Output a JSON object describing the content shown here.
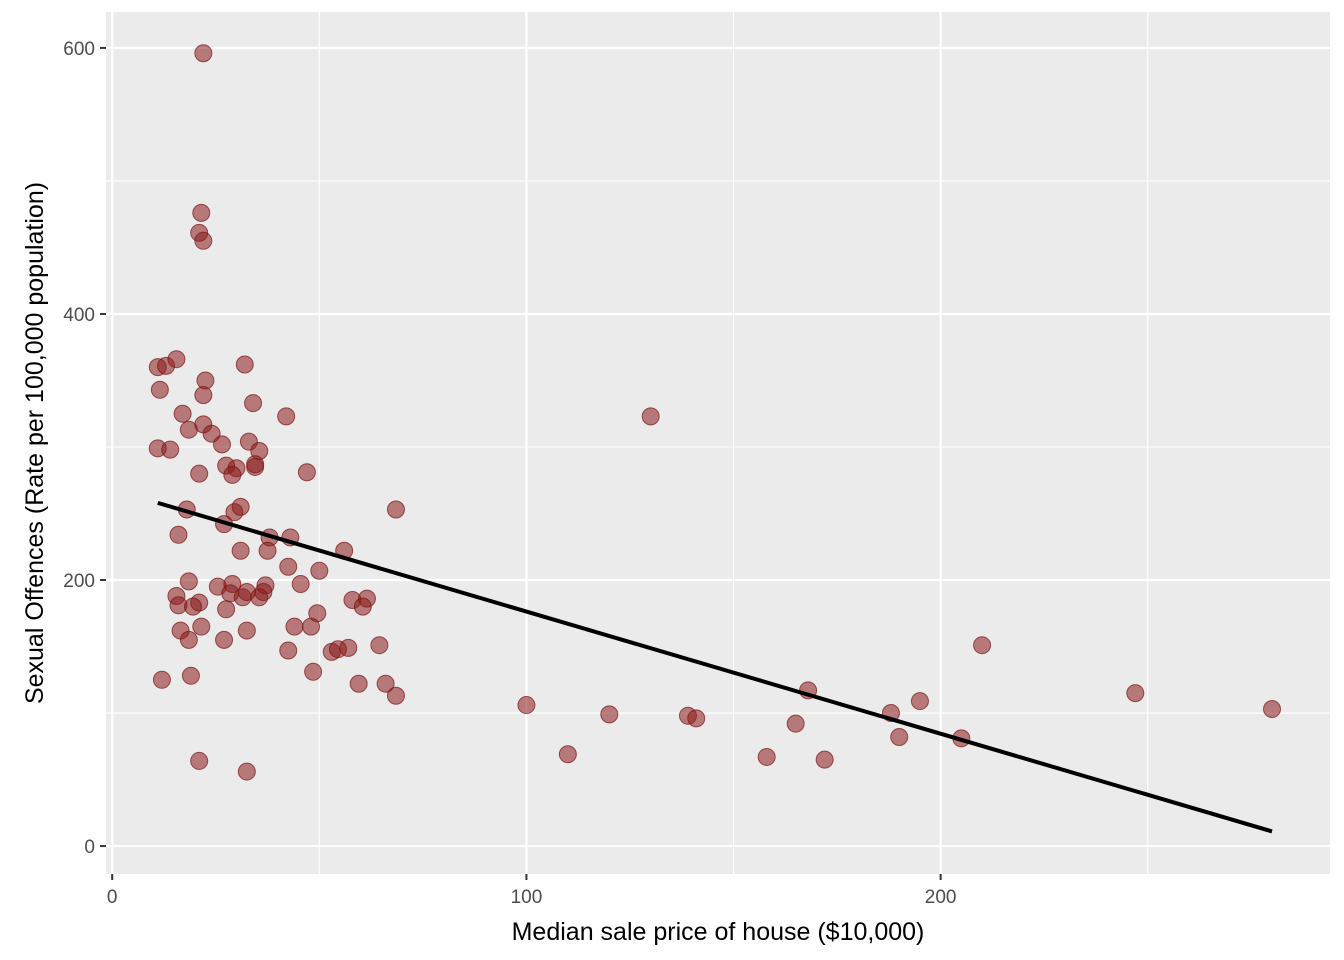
{
  "chart_data": {
    "type": "scatter",
    "xlabel": "Median sale price of house ($10,000)",
    "ylabel": "Sexual Offences (Rate per 100,000 population)",
    "xlim": [
      -1.5,
      294
    ],
    "ylim": [
      -21,
      627
    ],
    "x_ticks": [
      0,
      100,
      200
    ],
    "x_tick_labels": [
      "0",
      "100",
      "200"
    ],
    "y_ticks": [
      0,
      200,
      400,
      600
    ],
    "y_tick_labels": [
      "0",
      "200",
      "400",
      "600"
    ],
    "x_minor": [
      50,
      150,
      250
    ],
    "y_minor": [
      100,
      300,
      500
    ],
    "grid": true,
    "legend": "none",
    "colors": {
      "panel": "#ebebeb",
      "grid": "#ffffff",
      "point_fill": "#8b1a1a",
      "point_stroke": "#7a1212",
      "trend_line": "#000000",
      "tick_mark": "#333333"
    },
    "points": [
      [
        22,
        596
      ],
      [
        21.5,
        476
      ],
      [
        21,
        461
      ],
      [
        22,
        455
      ],
      [
        11,
        360
      ],
      [
        13,
        361
      ],
      [
        15.5,
        366
      ],
      [
        32,
        362
      ],
      [
        11.5,
        343
      ],
      [
        22.5,
        350
      ],
      [
        22,
        339
      ],
      [
        34,
        333
      ],
      [
        17,
        325
      ],
      [
        42,
        323
      ],
      [
        130,
        323
      ],
      [
        22,
        317
      ],
      [
        18.5,
        313
      ],
      [
        24,
        310
      ],
      [
        11,
        299
      ],
      [
        14,
        298
      ],
      [
        26.5,
        302
      ],
      [
        33,
        304
      ],
      [
        35.5,
        297
      ],
      [
        27.5,
        286
      ],
      [
        30,
        284
      ],
      [
        34.5,
        285
      ],
      [
        34.5,
        287
      ],
      [
        21,
        280
      ],
      [
        29,
        279
      ],
      [
        47,
        281
      ],
      [
        18,
        253
      ],
      [
        29.5,
        251
      ],
      [
        31,
        255
      ],
      [
        27,
        242
      ],
      [
        68.5,
        253
      ],
      [
        16,
        234
      ],
      [
        38,
        232
      ],
      [
        43,
        232
      ],
      [
        37.5,
        222
      ],
      [
        31,
        222
      ],
      [
        56,
        222
      ],
      [
        42.5,
        210
      ],
      [
        50,
        207
      ],
      [
        18.5,
        199
      ],
      [
        25.5,
        195
      ],
      [
        29,
        197
      ],
      [
        37,
        196
      ],
      [
        45.5,
        197
      ],
      [
        15.5,
        188
      ],
      [
        16,
        181
      ],
      [
        21,
        183
      ],
      [
        28.5,
        190
      ],
      [
        31.5,
        187
      ],
      [
        32.5,
        191
      ],
      [
        35.5,
        187
      ],
      [
        36.5,
        191
      ],
      [
        27.5,
        178
      ],
      [
        19.5,
        180
      ],
      [
        49.5,
        175
      ],
      [
        58,
        185
      ],
      [
        61.5,
        186
      ],
      [
        60.5,
        180
      ],
      [
        16.5,
        162
      ],
      [
        21.5,
        165
      ],
      [
        32.5,
        162
      ],
      [
        44,
        165
      ],
      [
        48,
        165
      ],
      [
        18.5,
        155
      ],
      [
        27,
        155
      ],
      [
        42.5,
        147
      ],
      [
        53,
        146
      ],
      [
        54.5,
        148
      ],
      [
        57,
        149
      ],
      [
        64.5,
        151
      ],
      [
        12,
        125
      ],
      [
        19,
        128
      ],
      [
        48.5,
        131
      ],
      [
        59.5,
        122
      ],
      [
        66,
        122
      ],
      [
        68.5,
        113
      ],
      [
        100,
        106
      ],
      [
        120,
        99
      ],
      [
        139,
        98
      ],
      [
        141,
        96
      ],
      [
        165,
        92
      ],
      [
        168,
        117
      ],
      [
        188,
        100
      ],
      [
        190,
        82
      ],
      [
        195,
        109
      ],
      [
        205,
        81
      ],
      [
        210,
        151
      ],
      [
        247,
        115
      ],
      [
        280,
        103
      ],
      [
        110,
        69
      ],
      [
        158,
        67
      ],
      [
        172,
        65
      ],
      [
        21,
        64
      ],
      [
        32.5,
        56
      ]
    ],
    "trend_line": {
      "x": [
        11,
        280
      ],
      "y": [
        258,
        11
      ]
    }
  }
}
